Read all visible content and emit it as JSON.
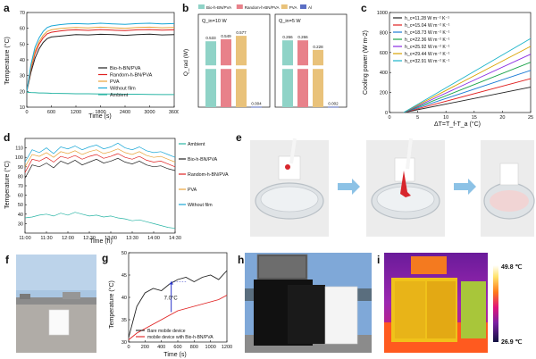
{
  "panels": {
    "a": {
      "label": "a",
      "chart_data": {
        "type": "line",
        "xlabel": "Time (s)",
        "ylabel": "Temperature (°C)",
        "xlim": [
          0,
          3600
        ],
        "ylim": [
          10,
          70
        ],
        "xticks": [
          "0",
          "600",
          "1200",
          "1800",
          "2400",
          "3000",
          "3600"
        ],
        "yticks": [
          "10",
          "20",
          "30",
          "40",
          "50",
          "60",
          "70"
        ],
        "x": [
          0,
          100,
          200,
          300,
          400,
          500,
          600,
          800,
          1000,
          1200,
          1500,
          1800,
          2100,
          2400,
          2700,
          3000,
          3300,
          3600
        ],
        "series": [
          {
            "name": "Bio-h-BN/PVA",
            "color": "#222222",
            "values": [
              20,
              32,
              41,
              47,
              51,
              53.5,
              54.5,
              55,
              55.5,
              56,
              55.8,
              56.2,
              56,
              55.5,
              56,
              56.3,
              55.8,
              56
            ]
          },
          {
            "name": "Random-h-BN/PVA",
            "color": "#e02020",
            "values": [
              20,
              34,
              44,
              50,
              54,
              56.5,
              57.5,
              58.3,
              58.8,
              59,
              58.7,
              59.2,
              58.8,
              58.5,
              59,
              59.2,
              58.8,
              59
            ]
          },
          {
            "name": "PVA",
            "color": "#e8a33a",
            "values": [
              20,
              35,
              45.5,
              51.5,
              55.5,
              58,
              59,
              59.8,
              60.2,
              60.5,
              60.2,
              60.7,
              60.3,
              60,
              60.5,
              60.7,
              60.3,
              60.5
            ]
          },
          {
            "name": "Without film",
            "color": "#1aa7d6",
            "values": [
              20,
              37,
              48,
              54,
              58,
              60.5,
              61.5,
              62.3,
              62.8,
              63,
              62.7,
              63.2,
              62.8,
              62.5,
              63,
              63.2,
              62.8,
              63
            ]
          },
          {
            "name": "Ambient",
            "color": "#2ab5a5",
            "values": [
              19.5,
              19.3,
              19.2,
              19,
              19,
              18.9,
              18.8,
              18.7,
              18.6,
              18.5,
              18.5,
              18.4,
              18.3,
              18.2,
              18.2,
              18.1,
              18,
              18
            ]
          }
        ]
      }
    },
    "b": {
      "label": "b",
      "chart_data": {
        "type": "bar",
        "ylabel": "Q_rad (W)",
        "legend": [
          "Bio-h-BN/PVA",
          "Random-h-BN/PVA",
          "PVA",
          "Al"
        ],
        "colors": [
          "#8fd3c7",
          "#e8818a",
          "#e9c27a",
          "#5b6fc4"
        ],
        "groups": [
          {
            "title": "Q_in=10 W",
            "values": [
              0.533,
              0.549,
              0.577,
              0.004
            ],
            "labels": [
              "0.533",
              "0.549",
              "0.577",
              "0.004"
            ]
          },
          {
            "title": "Q_in=5 W",
            "values": [
              0.266,
              0.266,
              0.228,
              0.002
            ],
            "labels": [
              "0.266",
              "0.266",
              "0.228",
              "0.002"
            ]
          }
        ]
      }
    },
    "c": {
      "label": "c",
      "chart_data": {
        "type": "line",
        "xlabel": "ΔT=T_f-T_a (°C)",
        "ylabel": "Cooling power (W m-2)",
        "xlim": [
          0,
          25
        ],
        "ylim": [
          0,
          1000
        ],
        "xticks": [
          "0",
          "5",
          "10",
          "15",
          "20",
          "25"
        ],
        "yticks": [
          "0",
          "200",
          "400",
          "600",
          "800",
          "1000"
        ],
        "x": [
          2.5,
          25
        ],
        "series": [
          {
            "name": "h_c=11.28 W m-2 K-1",
            "color": "#222222",
            "values": [
              0,
              254
            ]
          },
          {
            "name": "h_c=15.04 W m-2 K-1",
            "color": "#e02020",
            "values": [
              0,
              338
            ]
          },
          {
            "name": "h_c=18.73 W m-2 K-1",
            "color": "#1c7bd6",
            "values": [
              0,
              421
            ]
          },
          {
            "name": "h_c=22.36 W m-2 K-1",
            "color": "#1aa34a",
            "values": [
              0,
              503
            ]
          },
          {
            "name": "h_c=25.92 W m-2 K-1",
            "color": "#8a2be2",
            "values": [
              0,
              583
            ]
          },
          {
            "name": "h_c=29.44 W m-2 K-1",
            "color": "#d9a400",
            "values": [
              0,
              662
            ]
          },
          {
            "name": "h_c=32.91 W m-2 K-1",
            "color": "#1ab3c9",
            "values": [
              0,
              740
            ]
          }
        ],
        "legend_labels": [
          "h_c=11.28 W m⁻² K⁻¹",
          "h_c=15.04 W m⁻² K⁻¹",
          "h_c=18.73 W m⁻² K⁻¹",
          "h_c=22.36 W m⁻² K⁻¹",
          "h_c=25.92 W m⁻² K⁻¹",
          "h_c=29.44 W m⁻² K⁻¹",
          "h_c=32.91 W m⁻² K⁻¹"
        ]
      }
    },
    "d": {
      "label": "d",
      "chart_data": {
        "type": "line",
        "xlabel": "Time (h)",
        "ylabel": "Temperature (°C)",
        "xlim": [
          0,
          210
        ],
        "ylim": [
          20,
          120
        ],
        "xticks": [
          "11:00",
          "11:30",
          "12:00",
          "12:30",
          "13:00",
          "13:30",
          "14:00",
          "14:30"
        ],
        "yticks": [
          "30",
          "40",
          "50",
          "60",
          "70",
          "80",
          "90",
          "100",
          "110"
        ],
        "x": [
          0,
          10,
          20,
          30,
          40,
          50,
          60,
          70,
          80,
          90,
          100,
          110,
          120,
          130,
          140,
          150,
          160,
          170,
          180,
          190,
          200,
          210
        ],
        "series": [
          {
            "name": "Ambient",
            "color": "#2ab5a5",
            "values": [
              36,
              37,
              39,
              40,
              38,
              41,
              39,
              42,
              40,
              38,
              39,
              37,
              38,
              36,
              35,
              33,
              34,
              32,
              30,
              28,
              26,
              25
            ]
          },
          {
            "name": "Bio-h-BN/PVA",
            "color": "#222222",
            "values": [
              78,
              92,
              90,
              94,
              89,
              96,
              93,
              97,
              92,
              95,
              98,
              94,
              96,
              99,
              95,
              93,
              96,
              92,
              90,
              91,
              88,
              86
            ]
          },
          {
            "name": "Random-h-BN/PVA",
            "color": "#e02020",
            "values": [
              84,
              98,
              96,
              100,
              95,
              101,
              99,
              102,
              98,
              101,
              103,
              99,
              101,
              104,
              100,
              98,
              101,
              97,
              95,
              96,
              93,
              90
            ]
          },
          {
            "name": "PVA",
            "color": "#e8a33a",
            "values": [
              90,
              103,
              101,
              105,
              100,
              106,
              104,
              107,
              103,
              106,
              108,
              104,
              106,
              109,
              105,
              103,
              106,
              102,
              100,
              101,
              98,
              95
            ]
          },
          {
            "name": "Without film",
            "color": "#1aa7d6",
            "values": [
              95,
              108,
              105,
              110,
              104,
              111,
              109,
              112,
              108,
              111,
              113,
              109,
              111,
              115,
              110,
              108,
              111,
              107,
              105,
              106,
              103,
              100
            ]
          }
        ]
      }
    },
    "e": {
      "label": "e"
    },
    "f": {
      "label": "f"
    },
    "g": {
      "label": "g",
      "annotation": "7.0°C",
      "chart_data": {
        "type": "line",
        "xlabel": "Time (s)",
        "ylabel": "Temperature (°C)",
        "xlim": [
          0,
          1200
        ],
        "ylim": [
          30,
          50
        ],
        "xticks": [
          "0",
          "200",
          "400",
          "600",
          "800",
          "1000",
          "1200"
        ],
        "yticks": [
          "30",
          "35",
          "40",
          "45",
          "50"
        ],
        "x": [
          0,
          100,
          200,
          300,
          400,
          500,
          600,
          700,
          800,
          900,
          1000,
          1100,
          1200
        ],
        "series": [
          {
            "name": "Bare mobile device",
            "color": "#222222",
            "values": [
              31,
              38,
              41,
              42,
              41.5,
              43,
              44,
              44.5,
              43.5,
              44.5,
              45,
              44,
              46
            ]
          },
          {
            "name": "mobile device with Bio-h-BN/PVA",
            "color": "#e02020",
            "values": [
              30.5,
              32,
              33,
              34,
              35,
              36,
              37,
              37.5,
              38,
              38.5,
              39,
              39.5,
              40.5
            ]
          }
        ]
      }
    },
    "h": {
      "label": "h"
    },
    "i": {
      "label": "i",
      "scale_max": "49.8 ℃",
      "scale_min": "26.9 ℃"
    }
  }
}
